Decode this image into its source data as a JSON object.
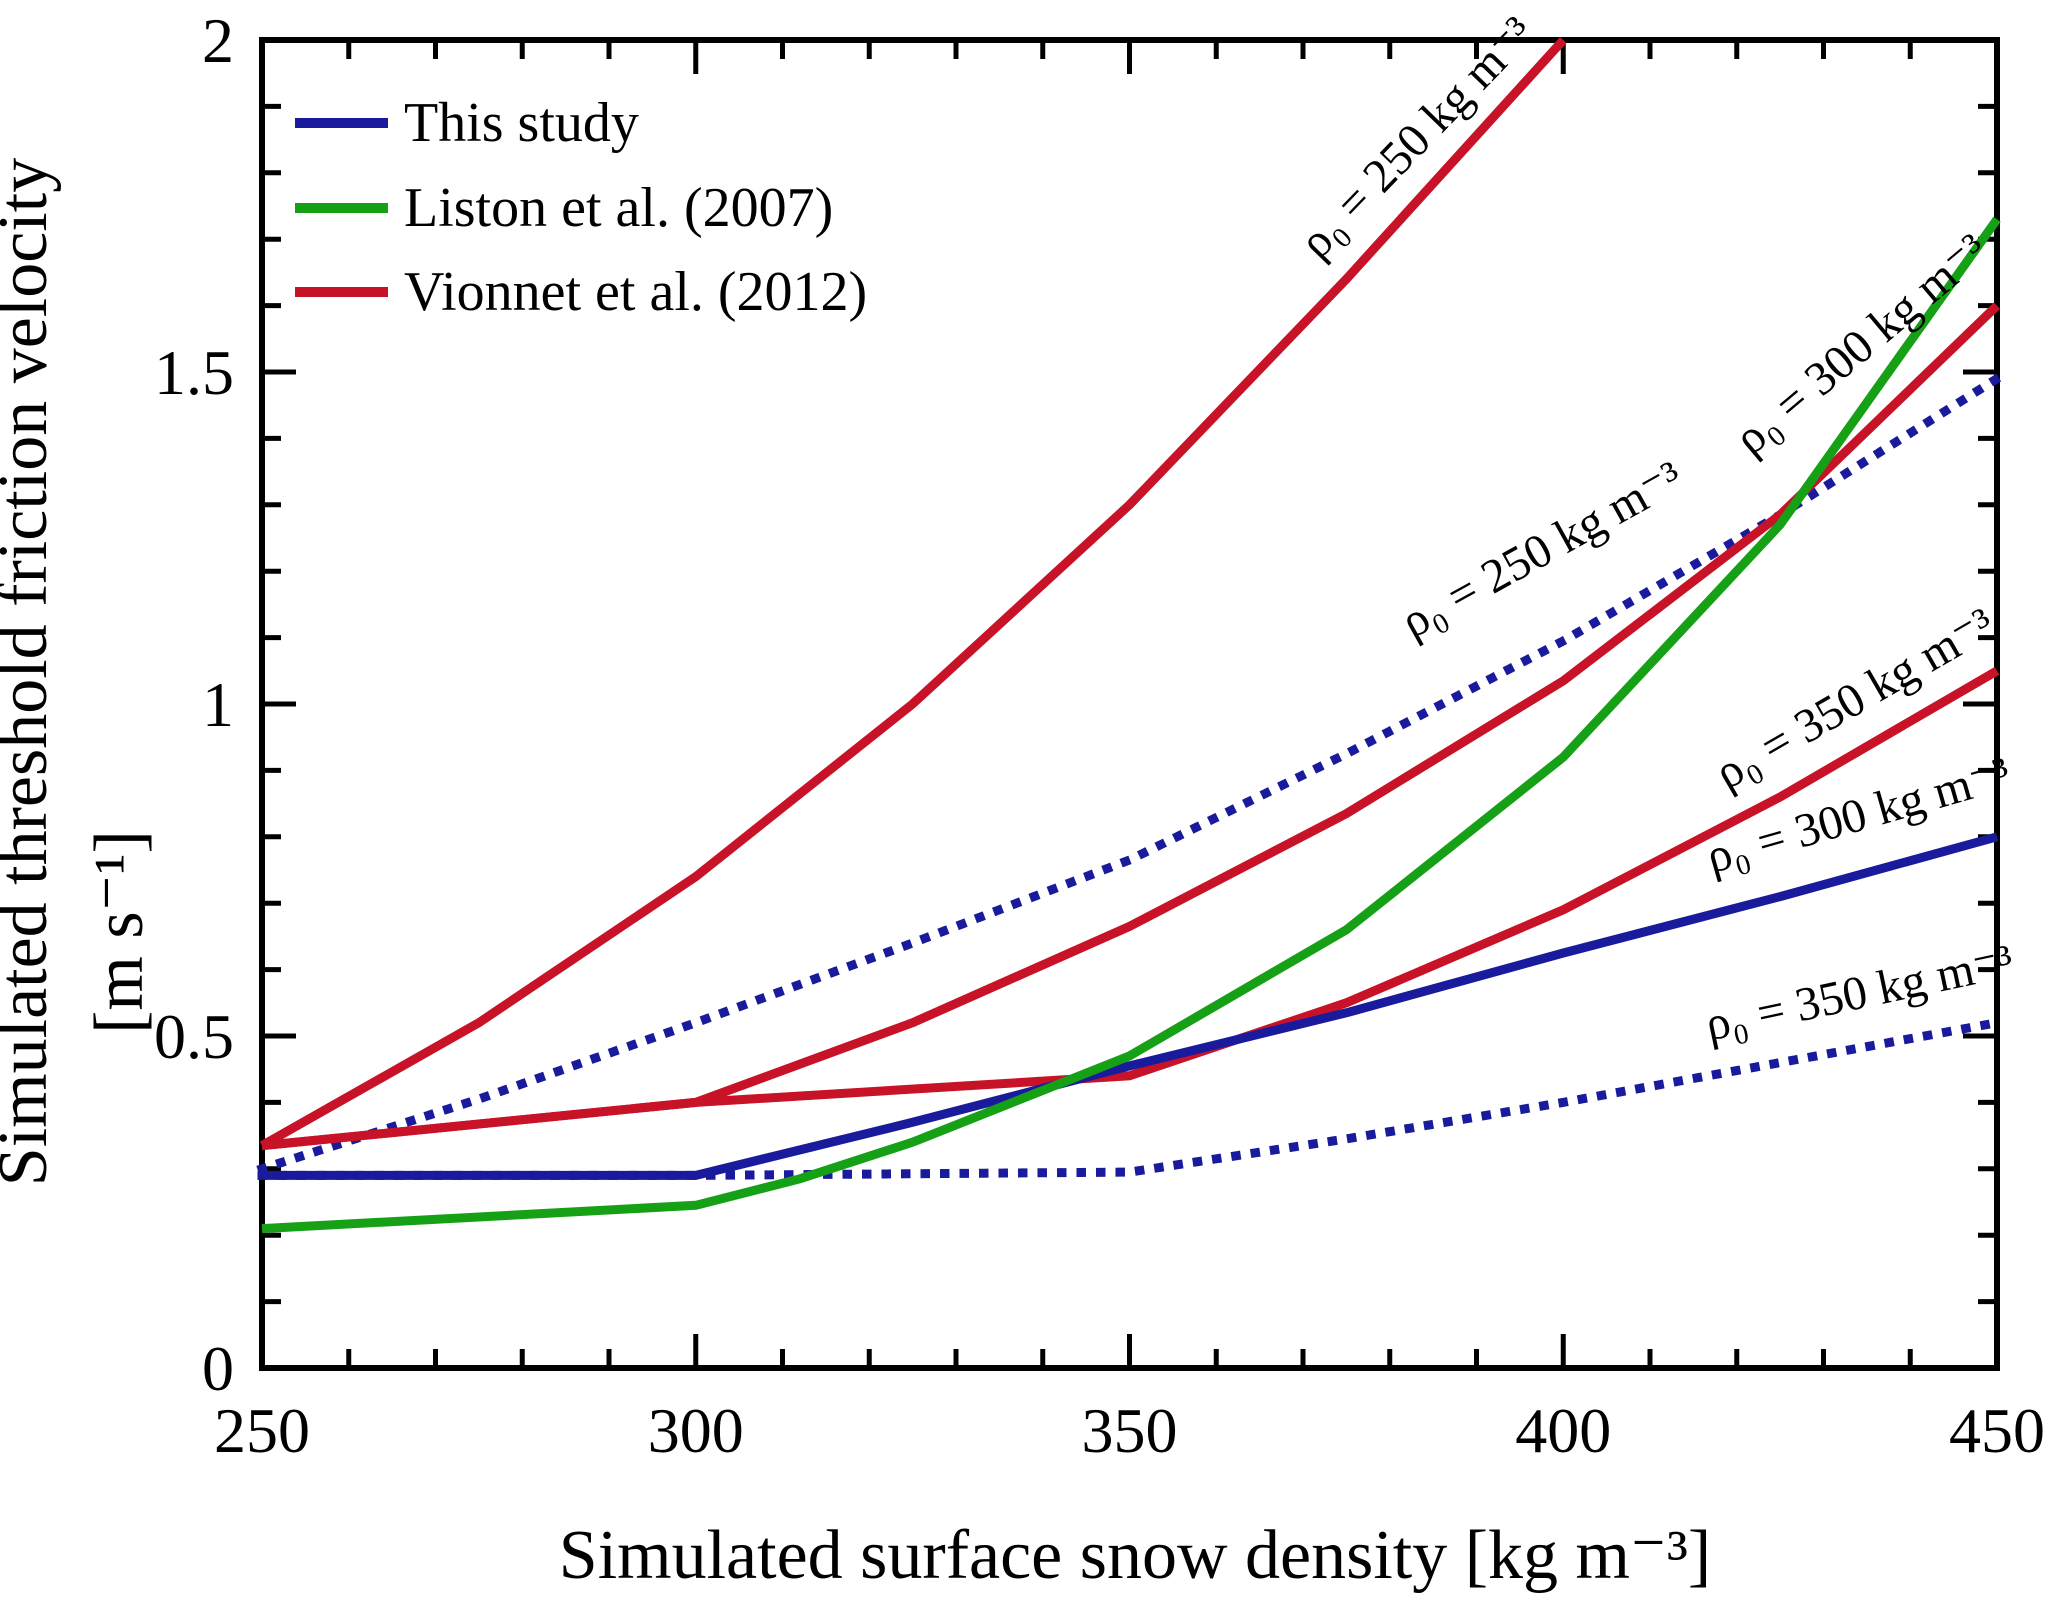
{
  "colors": {
    "blue": "#1a1a9c",
    "green": "#16a016",
    "red": "#c81227",
    "axis": "#000000",
    "background": "#ffffff"
  },
  "chart_data": {
    "type": "line",
    "title": "",
    "x_axis": {
      "label": "Simulated surface snow density [kg m⁻³]",
      "min": 250,
      "max": 450,
      "major_ticks": [
        250,
        300,
        350,
        400,
        450
      ],
      "major_tick_labels": [
        "250",
        "300",
        "350",
        "400",
        "450"
      ],
      "minor_tick_step": 10
    },
    "y_axis": {
      "label": "Simulated threshold friction velocity",
      "unit_label": "[m s⁻¹]",
      "min": 0,
      "max": 2,
      "major_ticks": [
        0,
        0.5,
        1,
        1.5,
        2
      ],
      "major_tick_labels": [
        "0",
        "0.5",
        "1",
        "1.5",
        "2"
      ],
      "minor_tick_step": 0.1
    },
    "grid": false,
    "legend": {
      "position": "top-left",
      "entries": [
        {
          "id": "this-study",
          "label": "This study",
          "color": "blue",
          "style": "solid"
        },
        {
          "id": "liston-2007",
          "label": "Liston et al. (2007)",
          "color": "green",
          "style": "solid"
        },
        {
          "id": "vionnet-2012",
          "label": "Vionnet et al. (2012)",
          "color": "red",
          "style": "solid"
        }
      ]
    },
    "series": [
      {
        "id": "this-study-rho250-dotted",
        "name": "This study, ρ₀ = 250 kg m⁻³",
        "color": "blue",
        "style": "dotted",
        "x": [
          250,
          275,
          300,
          325,
          350,
          375,
          400,
          425,
          450
        ],
        "y": [
          0.3,
          0.405,
          0.52,
          0.64,
          0.765,
          0.925,
          1.095,
          1.285,
          1.49
        ]
      },
      {
        "id": "this-study-rho350-dotted",
        "name": "This study, ρ₀ = 350 kg m⁻³",
        "color": "blue",
        "style": "dotted",
        "x": [
          250,
          300,
          350,
          375,
          400,
          425,
          450
        ],
        "y": [
          0.29,
          0.29,
          0.295,
          0.345,
          0.4,
          0.46,
          0.52
        ]
      },
      {
        "id": "vionnet-rho250",
        "name": "Vionnet et al. (2012), ρ₀ = 250 kg m⁻³",
        "color": "red",
        "style": "solid",
        "x": [
          250,
          275,
          300,
          325,
          350,
          375,
          400
        ],
        "y": [
          0.335,
          0.52,
          0.74,
          1.0,
          1.3,
          1.64,
          2.0
        ]
      },
      {
        "id": "vionnet-rho300",
        "name": "Vionnet et al. (2012), ρ₀ = 300 kg m⁻³",
        "color": "red",
        "style": "solid",
        "x": [
          250,
          300,
          325,
          350,
          375,
          400,
          425,
          450
        ],
        "y": [
          0.335,
          0.4,
          0.52,
          0.665,
          0.835,
          1.035,
          1.285,
          1.6
        ]
      },
      {
        "id": "vionnet-rho350",
        "name": "Vionnet et al. (2012), ρ₀ = 350 kg m⁻³",
        "color": "red",
        "style": "solid",
        "x": [
          250,
          300,
          350,
          375,
          400,
          425,
          450
        ],
        "y": [
          0.335,
          0.4,
          0.44,
          0.55,
          0.69,
          0.86,
          1.05
        ]
      },
      {
        "id": "this-study-rho300-solid",
        "name": "This study, ρ₀ = 300 kg m⁻³",
        "color": "blue",
        "style": "solid",
        "x": [
          250,
          300,
          325,
          350,
          375,
          400,
          425,
          450
        ],
        "y": [
          0.29,
          0.29,
          0.37,
          0.455,
          0.535,
          0.625,
          0.71,
          0.8
        ]
      },
      {
        "id": "liston-2007",
        "name": "Liston et al. (2007)",
        "color": "green",
        "style": "solid",
        "x": [
          250,
          300,
          312,
          325,
          350,
          375,
          400,
          425,
          450
        ],
        "y": [
          0.21,
          0.245,
          0.285,
          0.34,
          0.47,
          0.66,
          0.92,
          1.27,
          1.73
        ]
      }
    ],
    "annotations": [
      {
        "id": "vionnet-250-label",
        "text": "ρ₀ = 250 kg m⁻³",
        "color": "red",
        "x": 384.4,
        "y": 1.837,
        "rotate": -46
      },
      {
        "id": "vionnet-300-label",
        "text": "ρ₀ = 300 kg m⁻³",
        "color": "red",
        "x": 435.5,
        "y": 1.524,
        "rotate": -40
      },
      {
        "id": "this-study-250-label",
        "text": "ρ₀ = 250 kg m⁻³",
        "color": "blue",
        "x": 398.4,
        "y": 1.212,
        "rotate": -29
      },
      {
        "id": "vionnet-350-label",
        "text": "ρ₀ = 350 kg m⁻³",
        "color": "red",
        "x": 434.5,
        "y": 0.988,
        "rotate": -30
      },
      {
        "id": "this-study-300-label",
        "text": "ρ₀ = 300 kg m⁻³",
        "color": "blue",
        "x": 434.5,
        "y": 0.81,
        "rotate": -16
      },
      {
        "id": "this-study-350-label",
        "text": "ρ₀ = 350 kg m⁻³",
        "color": "blue",
        "x": 434.5,
        "y": 0.542,
        "rotate": -12
      }
    ]
  }
}
